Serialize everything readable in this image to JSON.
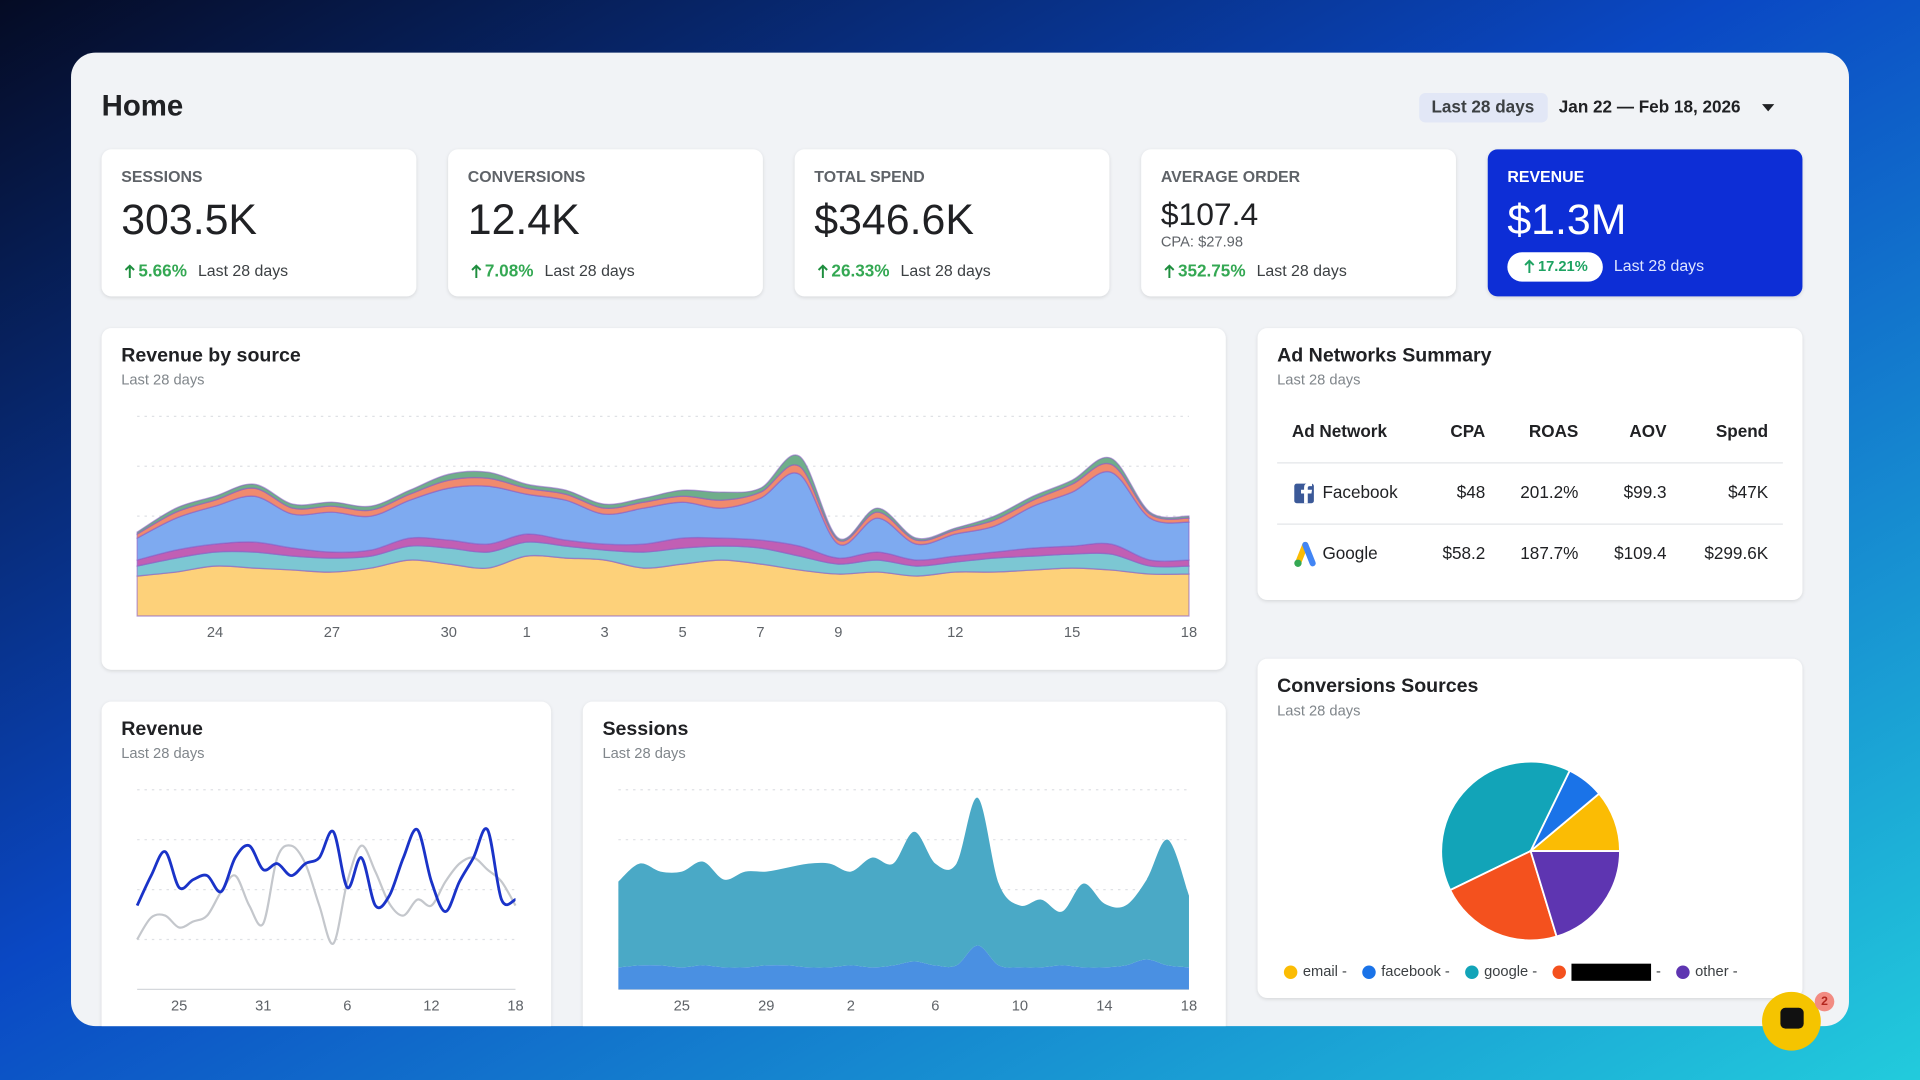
{
  "header": {
    "title": "Home",
    "range_chip": "Last 28 days",
    "date_range": "Jan 22 — Feb 18, 2026"
  },
  "kpis": [
    {
      "label": "SESSIONS",
      "value": "303.5K",
      "change": "5.66%",
      "period": "Last 28 days"
    },
    {
      "label": "CONVERSIONS",
      "value": "12.4K",
      "change": "7.08%",
      "period": "Last 28 days"
    },
    {
      "label": "TOTAL SPEND",
      "value": "$346.6K",
      "change": "26.33%",
      "period": "Last 28 days"
    },
    {
      "label": "AVERAGE ORDER",
      "value": "$107.4",
      "note": "CPA: $27.98",
      "change": "352.75%",
      "period": "Last 28 days"
    },
    {
      "label": "REVENUE",
      "value": "$1.3M",
      "change": "17.21%",
      "period": "Last 28 days"
    }
  ],
  "ad_networks": {
    "title": "Ad Networks Summary",
    "subtitle": "Last 28 days",
    "columns": [
      "Ad Network",
      "CPA",
      "ROAS",
      "AOV",
      "Spend"
    ],
    "rows": [
      [
        "Facebook",
        "$48",
        "201.2%",
        "$99.3",
        "$47K"
      ],
      [
        "Google",
        "$58.2",
        "187.7%",
        "$109.4",
        "$299.6K"
      ]
    ]
  },
  "chart_data": [
    {
      "type": "area",
      "stacked": true,
      "title": "Revenue by source",
      "subtitle": "Last 28 days",
      "categories": [
        null,
        null,
        "24",
        null,
        null,
        "27",
        null,
        null,
        "30",
        null,
        "1",
        null,
        "3",
        null,
        "5",
        null,
        "7",
        null,
        "9",
        null,
        null,
        "12",
        null,
        null,
        "15",
        null,
        null,
        "18"
      ],
      "ylim": [
        0,
        100
      ],
      "series": [
        {
          "color": "#fdd17a",
          "values": [
            20,
            22,
            25,
            24,
            23,
            22,
            24,
            28,
            26,
            24,
            30,
            29,
            28,
            24,
            26,
            28,
            26,
            23,
            21,
            22,
            20,
            22,
            22,
            23,
            24,
            23,
            21,
            21
          ]
        },
        {
          "color": "#7cc7d3",
          "values": [
            5,
            7,
            7,
            8,
            7,
            7,
            6,
            7,
            8,
            8,
            7,
            6,
            5,
            8,
            8,
            7,
            8,
            7,
            5,
            6,
            5,
            5,
            7,
            7,
            7,
            8,
            4,
            4
          ]
        },
        {
          "color": "#c15fb4",
          "values": [
            3,
            4,
            4,
            5,
            4,
            3,
            3,
            4,
            4,
            4,
            4,
            3,
            3,
            4,
            5,
            4,
            4,
            5,
            3,
            4,
            3,
            3,
            3,
            4,
            4,
            5,
            3,
            3
          ]
        },
        {
          "color": "#7eaaf0",
          "values": [
            11,
            16,
            19,
            23,
            17,
            20,
            17,
            19,
            26,
            29,
            20,
            20,
            15,
            18,
            18,
            15,
            21,
            36,
            7,
            17,
            8,
            11,
            13,
            21,
            27,
            36,
            21,
            19
          ]
        },
        {
          "color": "#f08a6e",
          "values": [
            2,
            3,
            3,
            4,
            3,
            3,
            3,
            3,
            4,
            4,
            3,
            3,
            3,
            3,
            3,
            4,
            3,
            4,
            2,
            3,
            2,
            2,
            3,
            3,
            4,
            4,
            2,
            2
          ]
        },
        {
          "color": "#6fae8a",
          "values": [
            1,
            2,
            2,
            2,
            2,
            2,
            2,
            2,
            3,
            3,
            2,
            2,
            2,
            2,
            3,
            4,
            2,
            5,
            1,
            2,
            1,
            1,
            2,
            2,
            2,
            3,
            1,
            1
          ]
        }
      ]
    },
    {
      "type": "line",
      "title": "Revenue",
      "subtitle": "Last 28 days",
      "categories": [
        null,
        null,
        null,
        "25",
        null,
        null,
        null,
        null,
        null,
        "31",
        null,
        null,
        null,
        null,
        null,
        "6",
        null,
        null,
        null,
        null,
        null,
        "12",
        null,
        null,
        null,
        null,
        null,
        "18"
      ],
      "ylim": [
        0,
        100
      ],
      "series": [
        {
          "color": "#1a33c8",
          "values": [
            42,
            57,
            69,
            51,
            55,
            57,
            49,
            66,
            72,
            60,
            63,
            57,
            63,
            66,
            79,
            51,
            66,
            42,
            47,
            66,
            80,
            54,
            39,
            54,
            66,
            80,
            45,
            45
          ]
        },
        {
          "color": "#c4c7cc",
          "values": [
            25,
            36,
            37,
            31,
            34,
            37,
            49,
            57,
            42,
            33,
            66,
            72,
            63,
            42,
            23,
            54,
            72,
            59,
            43,
            37,
            45,
            42,
            54,
            63,
            66,
            60,
            54,
            42
          ]
        }
      ]
    },
    {
      "type": "area",
      "stacked": true,
      "title": "Sessions",
      "subtitle": "Last 28 days",
      "categories": [
        null,
        null,
        null,
        "25",
        null,
        null,
        null,
        "29",
        null,
        null,
        null,
        "2",
        null,
        null,
        null,
        "6",
        null,
        null,
        null,
        "10",
        null,
        null,
        null,
        "14",
        null,
        null,
        null,
        "18"
      ],
      "ylim": [
        0,
        100
      ],
      "series": [
        {
          "color": "#4a90e2",
          "values": [
            11,
            12,
            12,
            11,
            12,
            11,
            11,
            12,
            12,
            11,
            11,
            12,
            11,
            12,
            14,
            12,
            12,
            22,
            12,
            11,
            11,
            12,
            11,
            11,
            12,
            15,
            12,
            11
          ]
        },
        {
          "color": "#4aa9c6",
          "values": [
            43,
            51,
            47,
            48,
            52,
            44,
            48,
            47,
            49,
            52,
            52,
            47,
            55,
            51,
            65,
            51,
            51,
            74,
            41,
            31,
            34,
            27,
            42,
            32,
            30,
            40,
            63,
            36
          ]
        }
      ]
    },
    {
      "type": "pie",
      "title": "Conversions Sources",
      "subtitle": "Last 28 days",
      "categories": [
        "email -",
        "facebook -",
        "google -",
        "-",
        "other -"
      ],
      "values": [
        11.1,
        6.7,
        39.4,
        22.5,
        20.3
      ],
      "colors": [
        "#fbbc04",
        "#1a73e8",
        "#12a4b8",
        "#f4511e",
        "#5e35b1"
      ]
    }
  ],
  "chat_badge": "2"
}
